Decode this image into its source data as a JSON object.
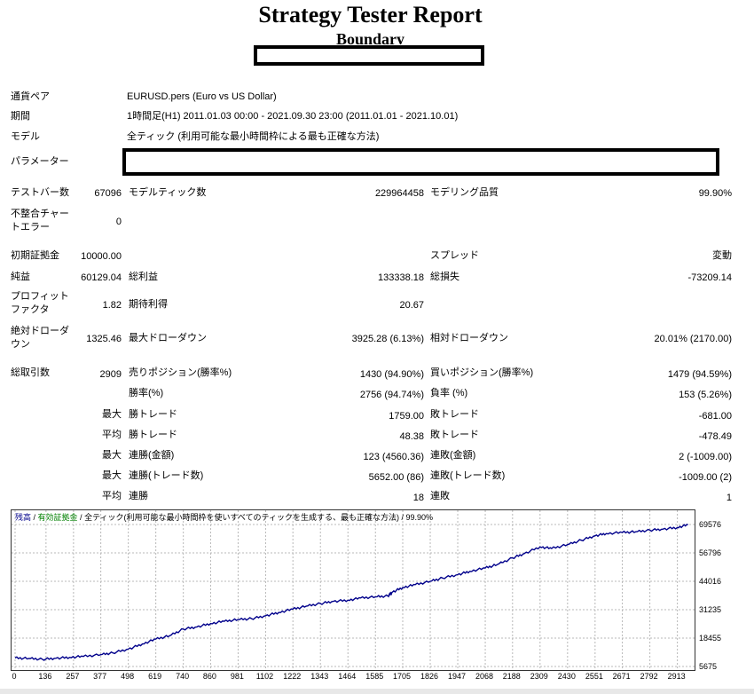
{
  "report": {
    "title": "Strategy Tester Report",
    "subtitle": "Boundary"
  },
  "params": {
    "symbol_label": "通貨ペア",
    "symbol_value": "EURUSD.pers (Euro vs US Dollar)",
    "period_label": "期間",
    "period_value": "1時間足(H1) 2011.01.03 00:00 - 2021.09.30 23:00 (2011.01.01 - 2021.10.01)",
    "model_label": "モデル",
    "model_value": "全ティック (利用可能な最小時間枠による最も正確な方法)",
    "parameters_label": "パラメーター"
  },
  "stats": {
    "bars_label": "テストバー数",
    "bars_value": "67096",
    "ticks_label": "モデルティック数",
    "ticks_value": "229964458",
    "quality_label": "モデリング品質",
    "quality_value": "99.90%",
    "mismatch_label_1": "不整合チャー",
    "mismatch_label_2": "トエラー",
    "mismatch_value": "0",
    "deposit_label": "初期証拠金",
    "deposit_value": "10000.00",
    "spread_label": "スプレッド",
    "spread_value": "変動",
    "net_label": "純益",
    "net_value": "60129.04",
    "gross_profit_label": "総利益",
    "gross_profit_value": "133338.18",
    "gross_loss_label": "総損失",
    "gross_loss_value": "-73209.14",
    "pf_label_1": "プロフィット",
    "pf_label_2": "ファクタ",
    "pf_value": "1.82",
    "expected_label": "期待利得",
    "expected_value": "20.67",
    "abs_dd_label_1": "絶対ドローダ",
    "abs_dd_label_2": "ウン",
    "abs_dd_value": "1325.46",
    "max_dd_label": "最大ドローダウン",
    "max_dd_value": "3925.28 (6.13%)",
    "rel_dd_label": "相対ドローダウン",
    "rel_dd_value": "20.01% (2170.00)",
    "total_trades_label": "総取引数",
    "total_trades_value": "2909",
    "short_label": "売りポジション(勝率%)",
    "short_value": "1430 (94.90%)",
    "long_label": "買いポジション(勝率%)",
    "long_value": "1479 (94.59%)",
    "win_rate_label": "勝率(%)",
    "win_rate_value": "2756 (94.74%)",
    "loss_rate_label": "負率 (%)",
    "loss_rate_value": "153 (5.26%)",
    "max_word": "最大",
    "avg_word": "平均",
    "max_win_label": "勝トレード",
    "max_win_value": "1759.00",
    "max_loss_label": "敗トレード",
    "max_loss_value": "-681.00",
    "avg_win_label": "勝トレード",
    "avg_win_value": "48.38",
    "avg_loss_label": "敗トレード",
    "avg_loss_value": "-478.49",
    "cons_wins_money_label": "連勝(金額)",
    "cons_wins_money_value": "123 (4560.36)",
    "cons_losses_money_label": "連敗(金額)",
    "cons_losses_money_value": "2 (-1009.00)",
    "cons_profit_label": "連勝(トレード数)",
    "cons_profit_value": "5652.00 (86)",
    "cons_loss_label": "連敗(トレード数)",
    "cons_loss_value": "-1009.00 (2)",
    "avg_cons_wins_label": "連勝",
    "avg_cons_wins_value": "18",
    "avg_cons_losses_label": "連敗",
    "avg_cons_losses_value": "1"
  },
  "chart_data": {
    "type": "line",
    "legend_balance": "残高",
    "legend_equity": "有効証拠金",
    "legend_model": "全ティック(利用可能な最小時間枠を使いすべてのティックを生成する、最も正確な方法)",
    "legend_quality": "99.90%",
    "legend_sep": " / ",
    "grid": true,
    "ylim": [
      5675,
      72000
    ],
    "y_ticks": [
      "69576",
      "56796",
      "44016",
      "31235",
      "18455",
      "5675"
    ],
    "x_ticks": [
      "0",
      "136",
      "257",
      "377",
      "498",
      "619",
      "740",
      "860",
      "981",
      "1102",
      "1222",
      "1343",
      "1464",
      "1585",
      "1705",
      "1826",
      "1947",
      "2068",
      "2188",
      "2309",
      "2430",
      "2551",
      "2671",
      "2792",
      "2913"
    ],
    "series": [
      {
        "color": "#00008b",
        "x": [
          0,
          60,
          120,
          180,
          240,
          300,
          377,
          430,
          498,
          560,
          619,
          680,
          740,
          800,
          860,
          920,
          981,
          1040,
          1102,
          1160,
          1222,
          1280,
          1343,
          1400,
          1464,
          1520,
          1585,
          1640,
          1660,
          1705,
          1760,
          1826,
          1880,
          1947,
          2000,
          2068,
          2120,
          2188,
          2240,
          2309,
          2360,
          2430,
          2490,
          2551,
          2600,
          2671,
          2730,
          2792,
          2850,
          2913,
          2960
        ],
        "y": [
          9500,
          9300,
          8900,
          9400,
          9800,
          10200,
          11000,
          11800,
          13500,
          15800,
          18000,
          19500,
          22500,
          23500,
          25000,
          26000,
          26800,
          27200,
          28500,
          30000,
          31500,
          32800,
          34000,
          35000,
          35500,
          36500,
          37000,
          37400,
          39200,
          41200,
          42500,
          44000,
          45500,
          47000,
          48500,
          50000,
          51500,
          54500,
          56500,
          59500,
          58800,
          60500,
          62500,
          64500,
          65500,
          66000,
          66300,
          67000,
          67500,
          68200,
          69500
        ]
      }
    ]
  }
}
